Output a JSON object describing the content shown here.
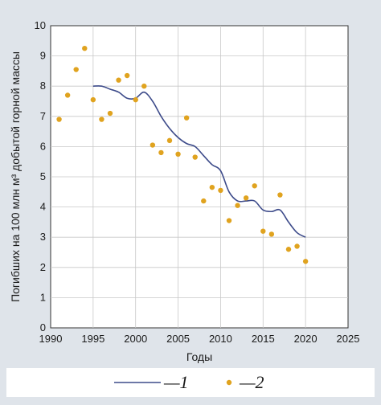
{
  "chart_data": {
    "type": "line",
    "xlabel": "Годы",
    "ylabel": "Погибших на 100 млн м³ добытой горной массы",
    "xlim": [
      1990,
      2025
    ],
    "ylim": [
      0,
      10
    ],
    "xticks": [
      "1990",
      "1995",
      "2000",
      "2005",
      "2010",
      "2015",
      "2020",
      "2025"
    ],
    "yticks": [
      "0",
      "1",
      "2",
      "3",
      "4",
      "5",
      "6",
      "7",
      "8",
      "9",
      "10"
    ],
    "grid": true,
    "legend_position": "bottom",
    "series": [
      {
        "name": "—1",
        "kind": "line",
        "color": "#3d4b8a",
        "x": [
          1995,
          1996,
          1997,
          1998,
          1999,
          2000,
          2001,
          2002,
          2003,
          2004,
          2005,
          2006,
          2007,
          2008,
          2009,
          2010,
          2011,
          2012,
          2013,
          2014,
          2015,
          2016,
          2017,
          2018,
          2019,
          2020
        ],
        "y": [
          8.0,
          8.0,
          7.9,
          7.8,
          7.6,
          7.6,
          7.8,
          7.5,
          7.0,
          6.6,
          6.3,
          6.1,
          6.0,
          5.7,
          5.4,
          5.2,
          4.5,
          4.2,
          4.2,
          4.2,
          3.9,
          3.85,
          3.9,
          3.5,
          3.15,
          3.0
        ]
      },
      {
        "name": "—2",
        "kind": "scatter",
        "color": "#e0a31f",
        "x": [
          1991,
          1992,
          1993,
          1994,
          1995,
          1996,
          1997,
          1998,
          1999,
          2000,
          2001,
          2002,
          2003,
          2004,
          2005,
          2006,
          2007,
          2008,
          2009,
          2010,
          2011,
          2012,
          2013,
          2014,
          2015,
          2016,
          2017,
          2018,
          2019,
          2020
        ],
        "y": [
          6.9,
          7.7,
          8.55,
          9.25,
          7.55,
          6.9,
          7.1,
          8.2,
          8.35,
          7.55,
          8.0,
          6.05,
          5.8,
          6.2,
          5.75,
          6.95,
          5.65,
          4.2,
          4.65,
          4.55,
          3.55,
          4.05,
          4.3,
          4.7,
          3.2,
          3.1,
          4.4,
          2.6,
          2.7,
          2.2
        ]
      }
    ]
  }
}
